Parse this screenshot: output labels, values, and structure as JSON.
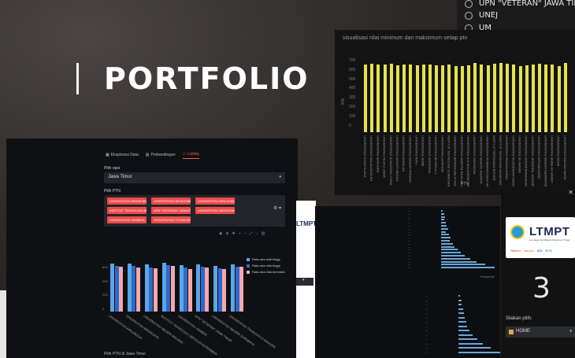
{
  "hero": {
    "title": "PORTFOLIO"
  },
  "radio_panel": {
    "options": [
      "UPN \"VETERAN\" JAWA TIMUR",
      "UNEJ",
      "UM"
    ]
  },
  "yellow_chart": {
    "title": "visualisasi nilai minimum dan maksimum setiap ptn",
    "xlabel": "PTN",
    "ylabel": "nilai",
    "yticks": [
      "700",
      "600",
      "500",
      "400",
      "300",
      "200",
      "100",
      "0"
    ],
    "categories": [
      "UNIVERSITAS SYIAH KUALA",
      "UNIVERSITAS MALIKUSSALEH",
      "UNIVERSITAS SAMUDRA",
      "UNIVERSITAS TEUKU UMAR",
      "UNIVERSITAS SUMATERA UTARA",
      "UNIVERSITAS NEGERI MEDAN",
      "UNIVERSITAS ANDALAS",
      "UNIVERSITAS NEGERI PADANG",
      "UNIVERSITAS RIAU",
      "UNIVERSITAS JAMBI",
      "UNIVERSITAS SRIWIJAYA",
      "UNIVERSITAS BENGKULU",
      "UNIVERSITAS LAMPUNG",
      "INSTITUT TEKNOLOGI SUMATERA",
      "UNIVERSITAS BANGKA BELITUNG",
      "UNIVERSITAS MARITIM RAJA ALI HAJI",
      "UNIVERSITAS SULTAN AGENG TIRTAYASA",
      "UNIVERSITAS INDONESIA",
      "UNIVERSITAS NEGERI JAKARTA",
      "UNIVERSITAS PEMBANGUNAN NASIONAL VETERAN JAKARTA",
      "INSTITUT PERTANIAN BOGOR",
      "INSTITUT TEKNOLOGI BANDUNG",
      "UNIVERSITAS PADJADJARAN",
      "UNIVERSITAS PENDIDIKAN INDONESIA",
      "UNIVERSITAS SILIWANGI",
      "UNIVERSITAS SINGAPERBANGSA KARAWANG",
      "UNIVERSITAS JENDERAL SOEDIRMAN",
      "UNIVERSITAS DIPONEGORO",
      "UNIVERSITAS NEGERI SEMARANG",
      "UNIVERSITAS SEBELAS MARET",
      "UNIVERSITAS TIDAR",
      "UNIVERSITAS GADJAH MADA"
    ]
  },
  "chart_data": [
    {
      "type": "bar",
      "title": "visualisasi nilai minimum dan maksimum setiap ptn",
      "xlabel": "PTN",
      "ylabel": "nilai",
      "ylim": [
        0,
        800
      ],
      "series": [
        {
          "values": [
            745,
            760,
            752,
            748,
            755,
            742,
            750,
            746,
            738,
            744,
            752,
            735,
            741,
            748,
            732,
            730,
            742,
            765,
            750,
            740,
            758,
            768,
            756,
            749,
            733,
            738,
            745,
            760,
            747,
            752,
            729,
            763
          ]
        }
      ]
    },
    {
      "type": "bar",
      "ylim": [
        0,
        800
      ],
      "yticks": [
        "600",
        "400",
        "200",
        "0"
      ],
      "categories": [
        "UNIVERSITAS AIRLANGGA",
        "UNIVERSITAS BRAWIJAYA",
        "UNIVERSITAS NEGERI MALANG",
        "INSTITUT TEKNOLOGI SEPULUH NOPEMBER",
        "UNIVERSITAS JEMBER",
        "UPN \"VETERAN\" JAWA TIMUR",
        "UNIVERSITAS NEGERI SURABAYA",
        "UNIVERSITAS TRUNOJOYO MADURA"
      ],
      "series": [
        {
          "name": "Rata-rata nilai tinggi",
          "values": [
            700,
            692,
            681,
            705,
            672,
            690,
            668,
            688
          ]
        },
        {
          "name": "Rata-rata nilai tinggi",
          "values": [
            665,
            658,
            645,
            670,
            640,
            652,
            630,
            655
          ]
        },
        {
          "name": "Rata-rata nilai terendah",
          "values": [
            650,
            642,
            630,
            660,
            622,
            641,
            615,
            650
          ]
        }
      ],
      "legend": "right"
    }
  ],
  "main_app": {
    "tabs": [
      "Eksplorasi Data",
      "Perbandingan",
      "Lomba"
    ],
    "province_label": "Pilih opsi",
    "province_value": "Jawa Timur",
    "ptn_label": "Pilih PTN",
    "chips": [
      "UNIVERSITAS BRAWIJAYA",
      "UNIVERSITAS NEGERI MALANG",
      "UNIVERSITAS AIRLANGGA",
      "INSTITUT TEKNOLOGI SEPULUH NOPEMBER",
      "UPN \"VETERAN\" JAWA TIMUR",
      "UNIVERSITAS NEGERI SURABAYA",
      "UNIVERSITAS JEMBER",
      "UNIVERSITAS TRUNOJOYO MADURA"
    ],
    "footer_title": "Pilih PTN di Jawa Timur",
    "colors": {
      "series1": "#5aa6e8",
      "series2": "#2f68c7",
      "series3": "#f4a8ac"
    }
  },
  "mid_window": {
    "logo": "LTMPT"
  },
  "hist_window": {
    "xlabel": "Frekuensi",
    "colors": {
      "bar": "#69a7d9"
    }
  },
  "ltmpt_panel": {
    "name": "LTMPT",
    "tagline": "Lembaga Tes Masuk Perguruan Tinggi",
    "partners": [
      "Telkom",
      "mandiri",
      "BNI",
      "BTN"
    ],
    "mark": "3",
    "pick_label": "Silakan pilih:",
    "select_value": "HOME"
  }
}
